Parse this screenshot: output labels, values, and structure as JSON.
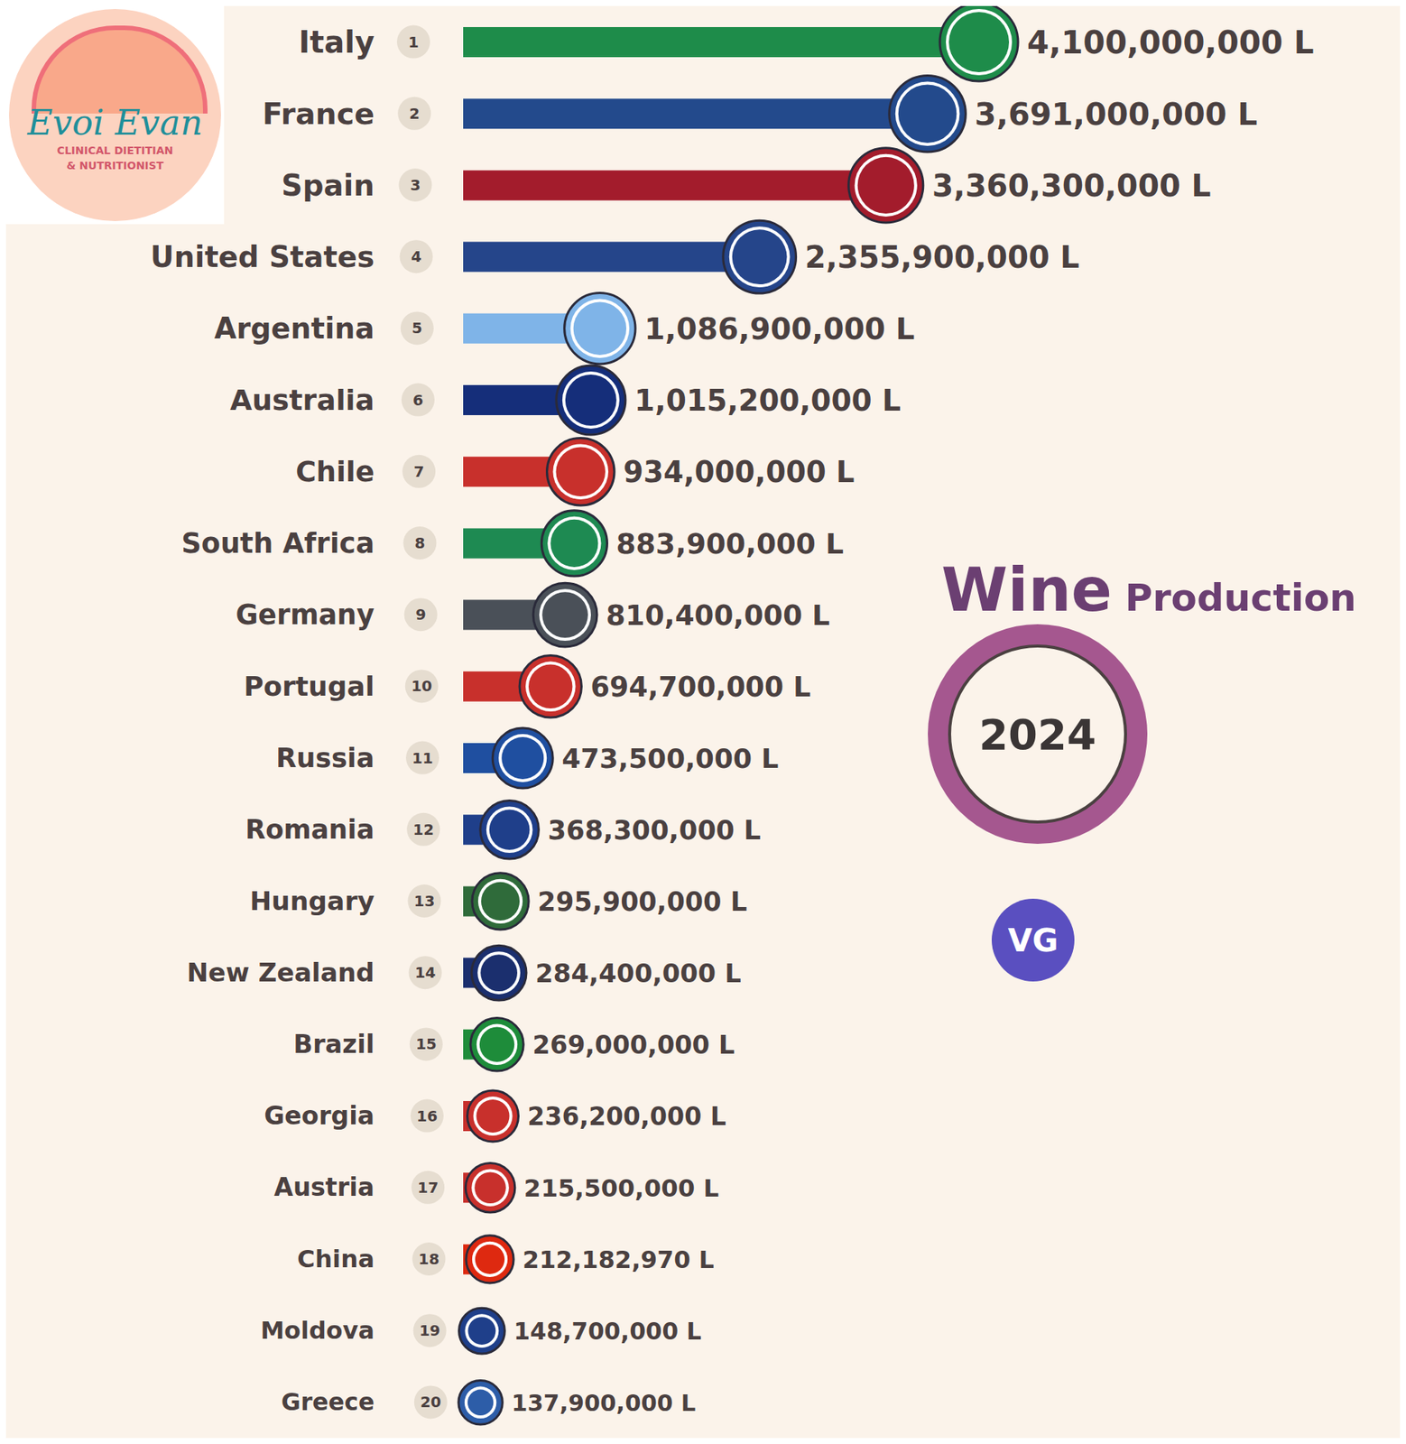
{
  "chart_data": {
    "type": "bar",
    "orientation": "horizontal",
    "title": "Wine Production",
    "subtitle": "2024",
    "categories": [
      "Italy",
      "France",
      "Spain",
      "United States",
      "Argentina",
      "Australia",
      "Chile",
      "South Africa",
      "Germany",
      "Portugal",
      "Russia",
      "Romania",
      "Hungary",
      "New Zealand",
      "Brazil",
      "Georgia",
      "Austria",
      "China",
      "Moldova",
      "Greece"
    ],
    "ranks": [
      1,
      2,
      3,
      4,
      5,
      6,
      7,
      8,
      9,
      10,
      11,
      12,
      13,
      14,
      15,
      16,
      17,
      18,
      19,
      20
    ],
    "values": [
      4100000000,
      3691000000,
      3360300000,
      2355900000,
      1086900000,
      1015200000,
      934000000,
      883900000,
      810400000,
      694700000,
      473500000,
      368300000,
      295900000,
      284400000,
      269000000,
      236200000,
      215500000,
      212182970,
      148700000,
      137900000
    ],
    "value_labels": [
      "4,100,000,000 L",
      "3,691,000,000 L",
      "3,360,300,000 L",
      "2,355,900,000 L",
      "1,086,900,000 L",
      "1,015,200,000 L",
      "934,000,000 L",
      "883,900,000 L",
      "810,400,000 L",
      "694,700,000 L",
      "473,500,000 L",
      "368,300,000 L",
      "295,900,000 L",
      "284,400,000 L",
      "269,000,000 L",
      "236,200,000 L",
      "215,500,000 L",
      "212,182,970 L",
      "148,700,000 L",
      "137,900,000 L"
    ],
    "colors": [
      "#1e8c4a",
      "#234a8c",
      "#a31c2c",
      "#25458a",
      "#7fb4e8",
      "#152e7a",
      "#c8302c",
      "#1e8a52",
      "#4a5058",
      "#c8302c",
      "#1f4fa0",
      "#1f3f8a",
      "#2f6b3a",
      "#1b2f6e",
      "#1e8c3a",
      "#c8302c",
      "#c8302c",
      "#de2910",
      "#1f3f8a",
      "#2d5da8"
    ],
    "xlim": [
      0,
      4100000000
    ],
    "tick_labels": false,
    "grid": false,
    "data_labels": true,
    "annotations": [
      "VG"
    ]
  },
  "logo": {
    "name": "Evoi Evan",
    "tagline": [
      "CLINICAL DIETITIAN",
      "& NUTRITIONIST"
    ]
  }
}
